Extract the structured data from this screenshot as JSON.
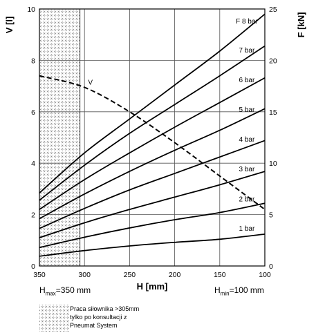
{
  "chart_data": {
    "type": "line",
    "left_axis": {
      "label": "V [l]",
      "ylim": [
        0,
        10
      ],
      "ticks": [
        "0",
        "2",
        "4",
        "6",
        "8",
        "10"
      ]
    },
    "right_axis": {
      "label": "F [kN]",
      "ylim": [
        0,
        25
      ],
      "ticks": [
        "0",
        "5",
        "10",
        "15",
        "20",
        "25"
      ]
    },
    "x_axis": {
      "label": "H [mm]",
      "xlim": [
        350,
        100
      ],
      "ticks": [
        "350",
        "300",
        "250",
        "200",
        "150",
        "100"
      ]
    },
    "grid": true,
    "hatched_region": [
      350,
      305
    ],
    "force_series": [
      {
        "name": "1 bar",
        "x": [
          350,
          300,
          250,
          200,
          150,
          100
        ],
        "y": [
          0.95,
          1.5,
          1.95,
          2.3,
          2.6,
          3.1
        ]
      },
      {
        "name": "2 bar",
        "x": [
          350,
          300,
          250,
          200,
          150,
          100
        ],
        "y": [
          1.8,
          2.8,
          3.7,
          4.5,
          5.2,
          6.1
        ]
      },
      {
        "name": "3 bar",
        "x": [
          350,
          300,
          250,
          200,
          150,
          100
        ],
        "y": [
          2.75,
          4.2,
          5.5,
          6.7,
          7.9,
          9.2
        ]
      },
      {
        "name": "4 bar",
        "x": [
          350,
          300,
          250,
          200,
          150,
          100
        ],
        "y": [
          3.65,
          5.6,
          7.4,
          9.0,
          10.6,
          12.2
        ]
      },
      {
        "name": "5 bar",
        "x": [
          350,
          300,
          250,
          200,
          150,
          100
        ],
        "y": [
          4.6,
          7.0,
          9.2,
          11.25,
          13.2,
          15.3
        ]
      },
      {
        "name": "6 bar",
        "x": [
          350,
          300,
          250,
          200,
          150,
          100
        ],
        "y": [
          5.5,
          8.4,
          11.0,
          13.5,
          15.9,
          18.3
        ]
      },
      {
        "name": "7 bar",
        "x": [
          350,
          300,
          250,
          200,
          150,
          100
        ],
        "y": [
          6.4,
          9.8,
          12.9,
          15.7,
          18.5,
          21.4
        ]
      },
      {
        "name": "F 8 bar",
        "x": [
          350,
          300,
          250,
          200,
          150,
          100
        ],
        "y": [
          7.1,
          11.0,
          14.3,
          17.6,
          20.9,
          24.5
        ]
      }
    ],
    "volume_series": {
      "name": "V",
      "x": [
        350,
        300,
        250,
        200,
        150,
        100
      ],
      "y": [
        7.4,
        6.95,
        6.0,
        4.8,
        3.5,
        2.2
      ]
    }
  },
  "footer": {
    "hmax_prefix": "H",
    "hmax_sub": "max",
    "hmax_value": "=350 mm",
    "hmin_prefix": "H",
    "hmin_sub": "min",
    "hmin_value": "=100 mm"
  },
  "legend": {
    "lines": [
      "Praca siłownika >305mm",
      "tylko po konsultacji z",
      "Pneumat System"
    ]
  }
}
